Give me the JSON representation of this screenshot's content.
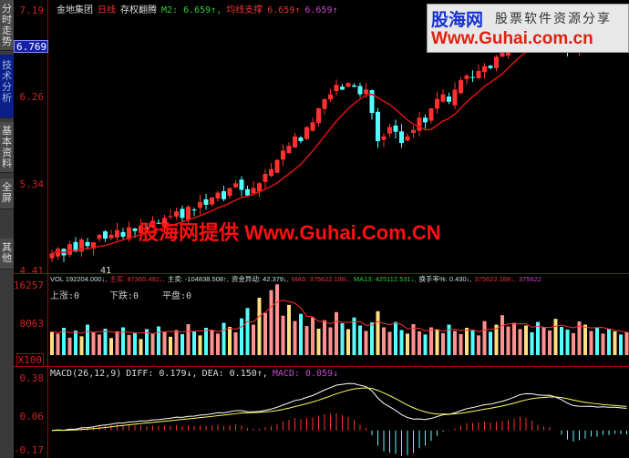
{
  "sidebar": {
    "tabs": [
      {
        "label": "分时走势",
        "active": false
      },
      {
        "label": "技术分析",
        "active": true
      },
      {
        "label": "基本资料",
        "active": false
      },
      {
        "label": "全屏",
        "active": false
      },
      {
        "label": "其他",
        "active": false
      }
    ]
  },
  "header": {
    "stock": "金地集团",
    "period": "日线",
    "indicator": "存权翻腾",
    "m2": "M2: 6.659↑,",
    "support_label": "均线支撑",
    "v1": "6.659↑",
    "v2": "6.659↑"
  },
  "price_axis": {
    "labels": [
      "7.19",
      "6.26",
      "5.34",
      "4.41"
    ],
    "current_price": "6.769",
    "min_marker": "41"
  },
  "volume": {
    "header": [
      {
        "t": "VOL 192204.000↓,",
        "c": "#ddd"
      },
      {
        "t": "主买: 87365.492↓,",
        "c": "#e33"
      },
      {
        "t": "主卖: -104838.508↑,",
        "c": "#ddd"
      },
      {
        "t": "资金异动: 42.379↓,",
        "c": "#ddd"
      },
      {
        "t": "MA5: 375622.188↓,",
        "c": "#e33"
      },
      {
        "t": "MA13: 425112.531↓,",
        "c": "#3c3"
      },
      {
        "t": "换手率%: 0.430↓,",
        "c": "#ddd"
      },
      {
        "t": "375622.188↓,",
        "c": "#e33"
      },
      {
        "t": "375622",
        "c": "#c4c"
      }
    ],
    "stats": {
      "up": "上涨:0",
      "down": "下跌:0",
      "flat": "平盘:0"
    },
    "axis": [
      "16257",
      "8063"
    ],
    "unit": "X100"
  },
  "macd": {
    "header": [
      {
        "t": "MACD(26,12,9)",
        "c": "#ddd"
      },
      {
        "t": "DIFF: 0.179↓,",
        "c": "#ddd"
      },
      {
        "t": "DEA: 0.150↑,",
        "c": "#ddd"
      },
      {
        "t": "MACD: 0.059↓",
        "c": "#c4c"
      }
    ],
    "axis": [
      "0.38",
      "0.06",
      "-0.17"
    ]
  },
  "logo": {
    "name": "股海网",
    "slogan": "股票软件资源分享",
    "url": "Www.Guhai.com.cn"
  },
  "watermark": "股海网提供 Www.Guhai.Com.CN",
  "colors": {
    "up": "#ff3030",
    "down": "#54ffff",
    "ma": "#e01010",
    "background": "#000000",
    "axis": "#aa0000"
  },
  "chart_data": {
    "type": "candlestick",
    "ylim": [
      4.41,
      7.19
    ],
    "close": [
      4.6,
      4.65,
      4.58,
      4.7,
      4.62,
      4.75,
      4.68,
      4.72,
      4.8,
      4.76,
      4.8,
      4.85,
      4.78,
      4.88,
      4.84,
      4.9,
      4.86,
      4.95,
      4.92,
      4.98,
      5.0,
      5.05,
      4.98,
      5.1,
      5.06,
      5.15,
      5.12,
      5.2,
      5.25,
      5.18,
      5.3,
      5.35,
      5.28,
      5.22,
      5.3,
      5.35,
      5.45,
      5.5,
      5.6,
      5.7,
      5.75,
      5.85,
      5.8,
      5.95,
      6.0,
      6.15,
      6.25,
      6.3,
      6.4,
      6.35,
      6.42,
      6.38,
      6.3,
      6.35,
      6.1,
      5.8,
      5.85,
      5.95,
      5.9,
      5.78,
      5.85,
      5.92,
      6.05,
      6.0,
      6.15,
      6.25,
      6.3,
      6.22,
      6.35,
      6.45,
      6.5,
      6.48,
      6.55,
      6.6,
      6.58,
      6.7,
      6.75,
      6.85,
      6.95,
      7.05,
      7.0,
      6.95,
      6.9,
      6.98,
      7.05,
      6.92,
      6.85,
      6.75,
      6.8,
      6.95,
      7.0,
      7.05,
      6.98,
      7.1,
      7.05,
      7.12,
      7.08,
      7.1
    ],
    "volume": [
      5200,
      4800,
      6100,
      3900,
      5500,
      4200,
      6800,
      5100,
      4600,
      5900,
      3800,
      5300,
      6200,
      4500,
      5000,
      3600,
      5800,
      4900,
      6400,
      5200,
      4100,
      5600,
      4700,
      6900,
      5300,
      4400,
      6100,
      5500,
      4800,
      7200,
      6300,
      5100,
      8200,
      10500,
      6800,
      12800,
      9400,
      14500,
      15800,
      8800,
      11200,
      7600,
      9200,
      6500,
      8400,
      5900,
      7800,
      6200,
      9600,
      7100,
      5800,
      8400,
      6600,
      5400,
      7300,
      9800,
      6200,
      5200,
      7400,
      5600,
      4800,
      6900,
      5300,
      4600,
      6200,
      5700,
      4900,
      6800,
      5400,
      4700,
      6100,
      5500,
      4400,
      7600,
      5200,
      6800,
      8900,
      6400,
      7200,
      5800,
      6600,
      5100,
      7400,
      6200,
      5500,
      8100,
      6300,
      5700,
      4900,
      7500,
      6800,
      5400,
      6200,
      4800,
      5900,
      5300,
      4600,
      5100
    ],
    "volume_max": 16257,
    "macd_ylim": [
      -0.17,
      0.38
    ]
  }
}
